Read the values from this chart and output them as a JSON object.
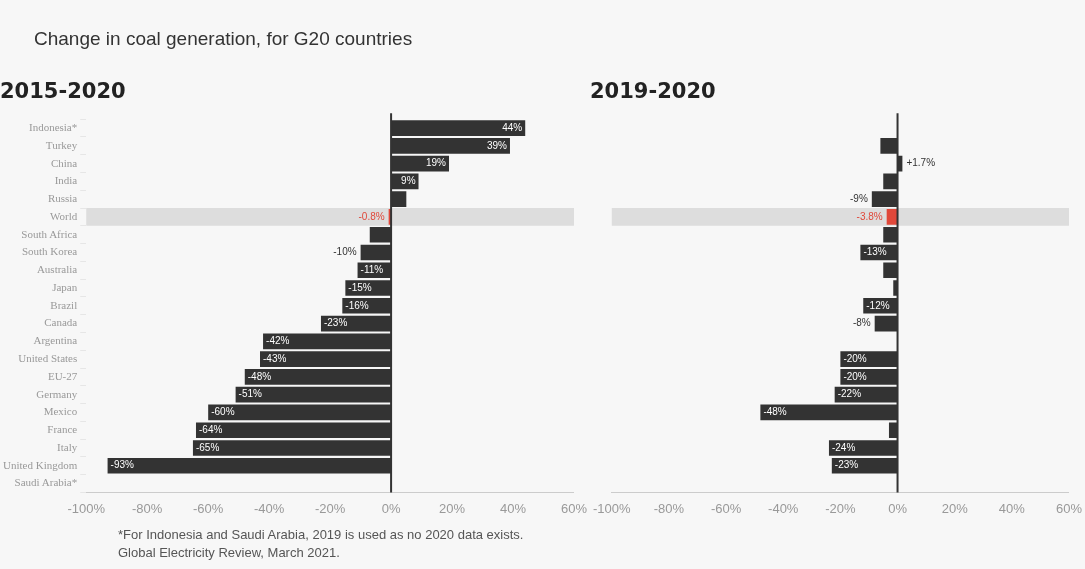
{
  "chart_data": [
    {
      "type": "other",
      "title": "Change in coal generation, for G20 countries"
    },
    {
      "type": "bar",
      "orientation": "horizontal",
      "title": "2015-2020",
      "categories": [
        "Indonesia*",
        "Turkey",
        "China",
        "India",
        "Russia",
        "World",
        "South Africa",
        "South Korea",
        "Australia",
        "Japan",
        "Brazil",
        "Canada",
        "Argentina",
        "United States",
        "EU-27",
        "Germany",
        "Mexico",
        "France",
        "Italy",
        "United Kingdom",
        "Saudi Arabia*"
      ],
      "values": [
        44,
        39,
        19,
        9,
        5,
        -0.8,
        -7,
        -10,
        -11,
        -15,
        -16,
        -23,
        -42,
        -43,
        -48,
        -51,
        -60,
        -64,
        -65,
        -93,
        null
      ],
      "value_labels": [
        "44%",
        "39%",
        "19%",
        "9%",
        null,
        "-0.8%",
        null,
        "-10%",
        "-11%",
        "-15%",
        "-16%",
        "-23%",
        "-42%",
        "-43%",
        "-48%",
        "-51%",
        "-60%",
        "-64%",
        "-65%",
        "-93%",
        null
      ],
      "colors": [
        "#333333",
        "#333333",
        "#333333",
        "#333333",
        "#333333",
        "#e0483a",
        "#333333",
        "#333333",
        "#333333",
        "#333333",
        "#333333",
        "#333333",
        "#333333",
        "#333333",
        "#333333",
        "#333333",
        "#333333",
        "#333333",
        "#333333",
        "#333333",
        "#333333"
      ],
      "xlim": [
        -100,
        60
      ],
      "xticks": [
        {
          "value": -100,
          "label": "-100%"
        },
        {
          "value": -80,
          "label": "-80%"
        },
        {
          "value": -60,
          "label": "-60%"
        },
        {
          "value": -40,
          "label": "-40%"
        },
        {
          "value": -20,
          "label": "-20%"
        },
        {
          "value": 0,
          "label": "0%"
        },
        {
          "value": 20,
          "label": "20%"
        },
        {
          "value": 40,
          "label": "40%"
        },
        {
          "value": 60,
          "label": "60%"
        }
      ],
      "ref_lines": [
        {
          "axis": "x",
          "value": 0,
          "color": "#333333"
        }
      ],
      "bands": [
        {
          "axis": "y",
          "from": "World",
          "to": "World",
          "color": "#dddddd"
        }
      ],
      "annotations": [
        "*For Indonesia and Saudi Arabia, 2019 is used as no 2020 data exists.",
        "Global Electricity Review, March 2021."
      ]
    },
    {
      "type": "bar",
      "orientation": "horizontal",
      "title": "2019-2020",
      "tick_labels": "x",
      "categories": [
        "Indonesia*",
        "Turkey",
        "China",
        "India",
        "Russia",
        "World",
        "South Africa",
        "South Korea",
        "Australia",
        "Japan",
        "Brazil",
        "Canada",
        "Argentina",
        "United States",
        "EU-27",
        "Germany",
        "Mexico",
        "France",
        "Italy",
        "United Kingdom",
        "Saudi Arabia*"
      ],
      "values": [
        null,
        -6,
        1.7,
        -5,
        -9,
        -3.8,
        -5,
        -13,
        -5,
        -1.5,
        -12,
        -8,
        null,
        -20,
        -20,
        -22,
        -48,
        -3,
        -24,
        -23,
        null
      ],
      "value_labels": [
        null,
        null,
        "+1.7%",
        null,
        "-9%",
        "-3.8%",
        null,
        "-13%",
        null,
        null,
        "-12%",
        "-8%",
        null,
        "-20%",
        "-20%",
        "-22%",
        "-48%",
        null,
        "-24%",
        "-23%",
        null
      ],
      "colors": [
        "#333333",
        "#333333",
        "#333333",
        "#333333",
        "#333333",
        "#e0483a",
        "#333333",
        "#333333",
        "#333333",
        "#333333",
        "#333333",
        "#333333",
        "#333333",
        "#333333",
        "#333333",
        "#333333",
        "#333333",
        "#333333",
        "#333333",
        "#333333",
        "#333333"
      ],
      "xlim": [
        -100,
        60
      ],
      "xticks": [
        {
          "value": -100,
          "label": "-100%"
        },
        {
          "value": -80,
          "label": "-80%"
        },
        {
          "value": -60,
          "label": "-60%"
        },
        {
          "value": -40,
          "label": "-40%"
        },
        {
          "value": -20,
          "label": "-20%"
        },
        {
          "value": 0,
          "label": "0%"
        },
        {
          "value": 20,
          "label": "20%"
        },
        {
          "value": 40,
          "label": "40%"
        },
        {
          "value": 60,
          "label": "60%"
        }
      ],
      "ref_lines": [
        {
          "axis": "x",
          "value": 0,
          "color": "#333333"
        }
      ],
      "bands": [
        {
          "axis": "y",
          "from": "World",
          "to": "World",
          "color": "#dddddd"
        }
      ]
    }
  ]
}
